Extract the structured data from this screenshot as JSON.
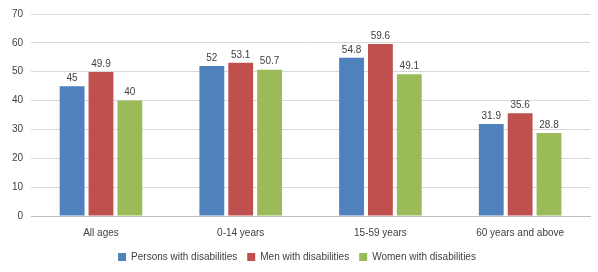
{
  "chart_data": {
    "type": "bar",
    "categories": [
      "All ages",
      "0-14 years",
      "15-59 years",
      "60 years and above"
    ],
    "series": [
      {
        "name": "Persons with disabilities",
        "color": "#4f81bd",
        "values": [
          45,
          52,
          54.8,
          31.9
        ]
      },
      {
        "name": "Men with disabilities",
        "color": "#c0504d",
        "values": [
          49.9,
          53.1,
          59.6,
          35.6
        ]
      },
      {
        "name": "Women with disabilities",
        "color": "#9bbb59",
        "values": [
          40,
          50.7,
          49.1,
          28.8
        ]
      }
    ],
    "ylim": [
      0,
      70
    ],
    "yticks": [
      0,
      10,
      20,
      30,
      40,
      50,
      60,
      70
    ],
    "grid": true,
    "legend": "bottom",
    "data_labels": true
  }
}
